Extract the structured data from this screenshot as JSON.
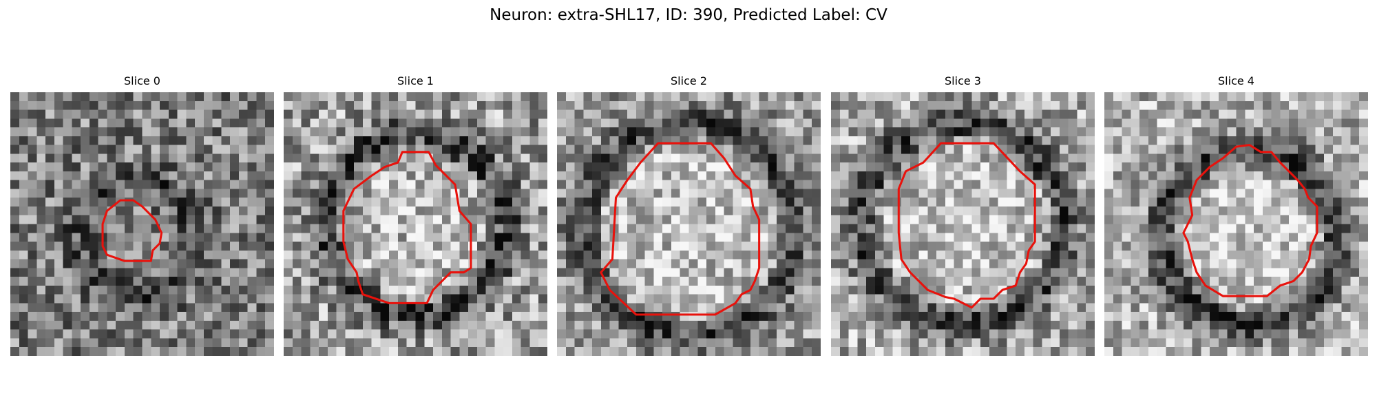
{
  "figure": {
    "title": "Neuron: extra-SHL17, ID: 390, Predicted Label: CV"
  },
  "panels": [
    {
      "title": "Slice 0",
      "image": {
        "grid": 30,
        "seed": 17,
        "base": 0.5,
        "contrast": 0.3,
        "ring_darkness": 0.2,
        "ring_radius": 0.22,
        "inner_brightness": 0.02,
        "center": [
          0.48,
          0.56
        ]
      },
      "outline": [
        [
          10.5,
          15.0
        ],
        [
          11.0,
          13.5
        ],
        [
          12.5,
          12.3
        ],
        [
          14.0,
          12.3
        ],
        [
          15.0,
          13.0
        ],
        [
          16.5,
          14.5
        ],
        [
          17.2,
          16.0
        ],
        [
          17.0,
          17.2
        ],
        [
          16.2,
          18.0
        ],
        [
          16.0,
          19.2
        ],
        [
          13.0,
          19.2
        ],
        [
          11.0,
          18.5
        ],
        [
          10.5,
          17.5
        ]
      ]
    },
    {
      "title": "Slice 1",
      "image": {
        "grid": 30,
        "seed": 23,
        "base": 0.62,
        "contrast": 0.32,
        "ring_darkness": 0.35,
        "ring_radius": 0.34,
        "inner_brightness": 0.12,
        "center": [
          0.5,
          0.5
        ]
      },
      "outline": [
        [
          13.5,
          6.8
        ],
        [
          16.5,
          6.8
        ],
        [
          17.3,
          8.3
        ],
        [
          19.5,
          10.5
        ],
        [
          20.0,
          13.5
        ],
        [
          21.3,
          15.0
        ],
        [
          21.3,
          20.0
        ],
        [
          20.5,
          20.5
        ],
        [
          19.0,
          20.5
        ],
        [
          17.0,
          22.5
        ],
        [
          16.3,
          24.0
        ],
        [
          12.0,
          24.0
        ],
        [
          9.0,
          23.0
        ],
        [
          8.5,
          21.5
        ],
        [
          8.3,
          20.5
        ],
        [
          7.3,
          19.0
        ],
        [
          6.8,
          17.0
        ],
        [
          6.8,
          13.5
        ],
        [
          8.0,
          11.0
        ],
        [
          10.0,
          9.5
        ],
        [
          11.5,
          8.5
        ],
        [
          13.0,
          8.0
        ]
      ]
    },
    {
      "title": "Slice 2",
      "image": {
        "grid": 30,
        "seed": 41,
        "base": 0.6,
        "contrast": 0.28,
        "ring_darkness": 0.32,
        "ring_radius": 0.4,
        "inner_brightness": 0.14,
        "center": [
          0.5,
          0.52
        ]
      },
      "outline": [
        [
          11.5,
          5.8
        ],
        [
          17.5,
          5.8
        ],
        [
          19.0,
          7.5
        ],
        [
          20.3,
          9.5
        ],
        [
          22.0,
          11.0
        ],
        [
          22.3,
          13.0
        ],
        [
          23.0,
          14.5
        ],
        [
          23.0,
          20.0
        ],
        [
          22.5,
          21.5
        ],
        [
          22.0,
          22.5
        ],
        [
          21.0,
          23.0
        ],
        [
          20.3,
          24.0
        ],
        [
          18.0,
          25.3
        ],
        [
          9.0,
          25.3
        ],
        [
          6.0,
          22.5
        ],
        [
          5.0,
          20.5
        ],
        [
          6.3,
          19.0
        ],
        [
          6.7,
          12.0
        ],
        [
          8.0,
          10.0
        ],
        [
          9.5,
          8.0
        ]
      ]
    },
    {
      "title": "Slice 3",
      "image": {
        "grid": 30,
        "seed": 59,
        "base": 0.66,
        "contrast": 0.3,
        "ring_darkness": 0.38,
        "ring_radius": 0.38,
        "inner_brightness": 0.1,
        "center": [
          0.5,
          0.5
        ]
      },
      "outline": [
        [
          12.5,
          5.8
        ],
        [
          18.5,
          5.8
        ],
        [
          21.5,
          9.0
        ],
        [
          23.2,
          10.5
        ],
        [
          23.2,
          17.0
        ],
        [
          22.5,
          18.0
        ],
        [
          22.2,
          19.5
        ],
        [
          21.5,
          20.5
        ],
        [
          21.0,
          22.0
        ],
        [
          19.5,
          22.5
        ],
        [
          18.5,
          23.5
        ],
        [
          17.0,
          23.5
        ],
        [
          16.0,
          24.5
        ],
        [
          15.0,
          24.0
        ],
        [
          14.0,
          23.5
        ],
        [
          13.0,
          23.3
        ],
        [
          11.0,
          22.5
        ],
        [
          9.0,
          20.5
        ],
        [
          8.0,
          19.0
        ],
        [
          7.7,
          16.0
        ],
        [
          7.7,
          11.0
        ],
        [
          8.5,
          9.0
        ],
        [
          10.5,
          8.0
        ]
      ]
    },
    {
      "title": "Slice 4",
      "image": {
        "grid": 30,
        "seed": 73,
        "base": 0.68,
        "contrast": 0.28,
        "ring_darkness": 0.45,
        "ring_radius": 0.33,
        "inner_brightness": 0.12,
        "center": [
          0.55,
          0.55
        ]
      },
      "outline": [
        [
          15.0,
          6.2
        ],
        [
          16.5,
          6.0
        ],
        [
          17.8,
          6.8
        ],
        [
          19.0,
          6.8
        ],
        [
          20.0,
          8.0
        ],
        [
          22.0,
          10.0
        ],
        [
          22.8,
          11.0
        ],
        [
          23.2,
          12.0
        ],
        [
          24.2,
          13.0
        ],
        [
          24.2,
          16.0
        ],
        [
          23.5,
          17.5
        ],
        [
          23.3,
          19.0
        ],
        [
          22.5,
          20.5
        ],
        [
          21.5,
          21.5
        ],
        [
          20.0,
          22.0
        ],
        [
          18.5,
          23.2
        ],
        [
          13.5,
          23.2
        ],
        [
          11.5,
          22.0
        ],
        [
          10.5,
          20.5
        ],
        [
          10.0,
          19.0
        ],
        [
          9.5,
          17.0
        ],
        [
          9.0,
          16.0
        ],
        [
          9.5,
          15.0
        ],
        [
          10.0,
          14.0
        ],
        [
          9.7,
          12.0
        ],
        [
          10.5,
          10.0
        ],
        [
          12.0,
          8.5
        ],
        [
          13.5,
          7.5
        ]
      ]
    }
  ]
}
